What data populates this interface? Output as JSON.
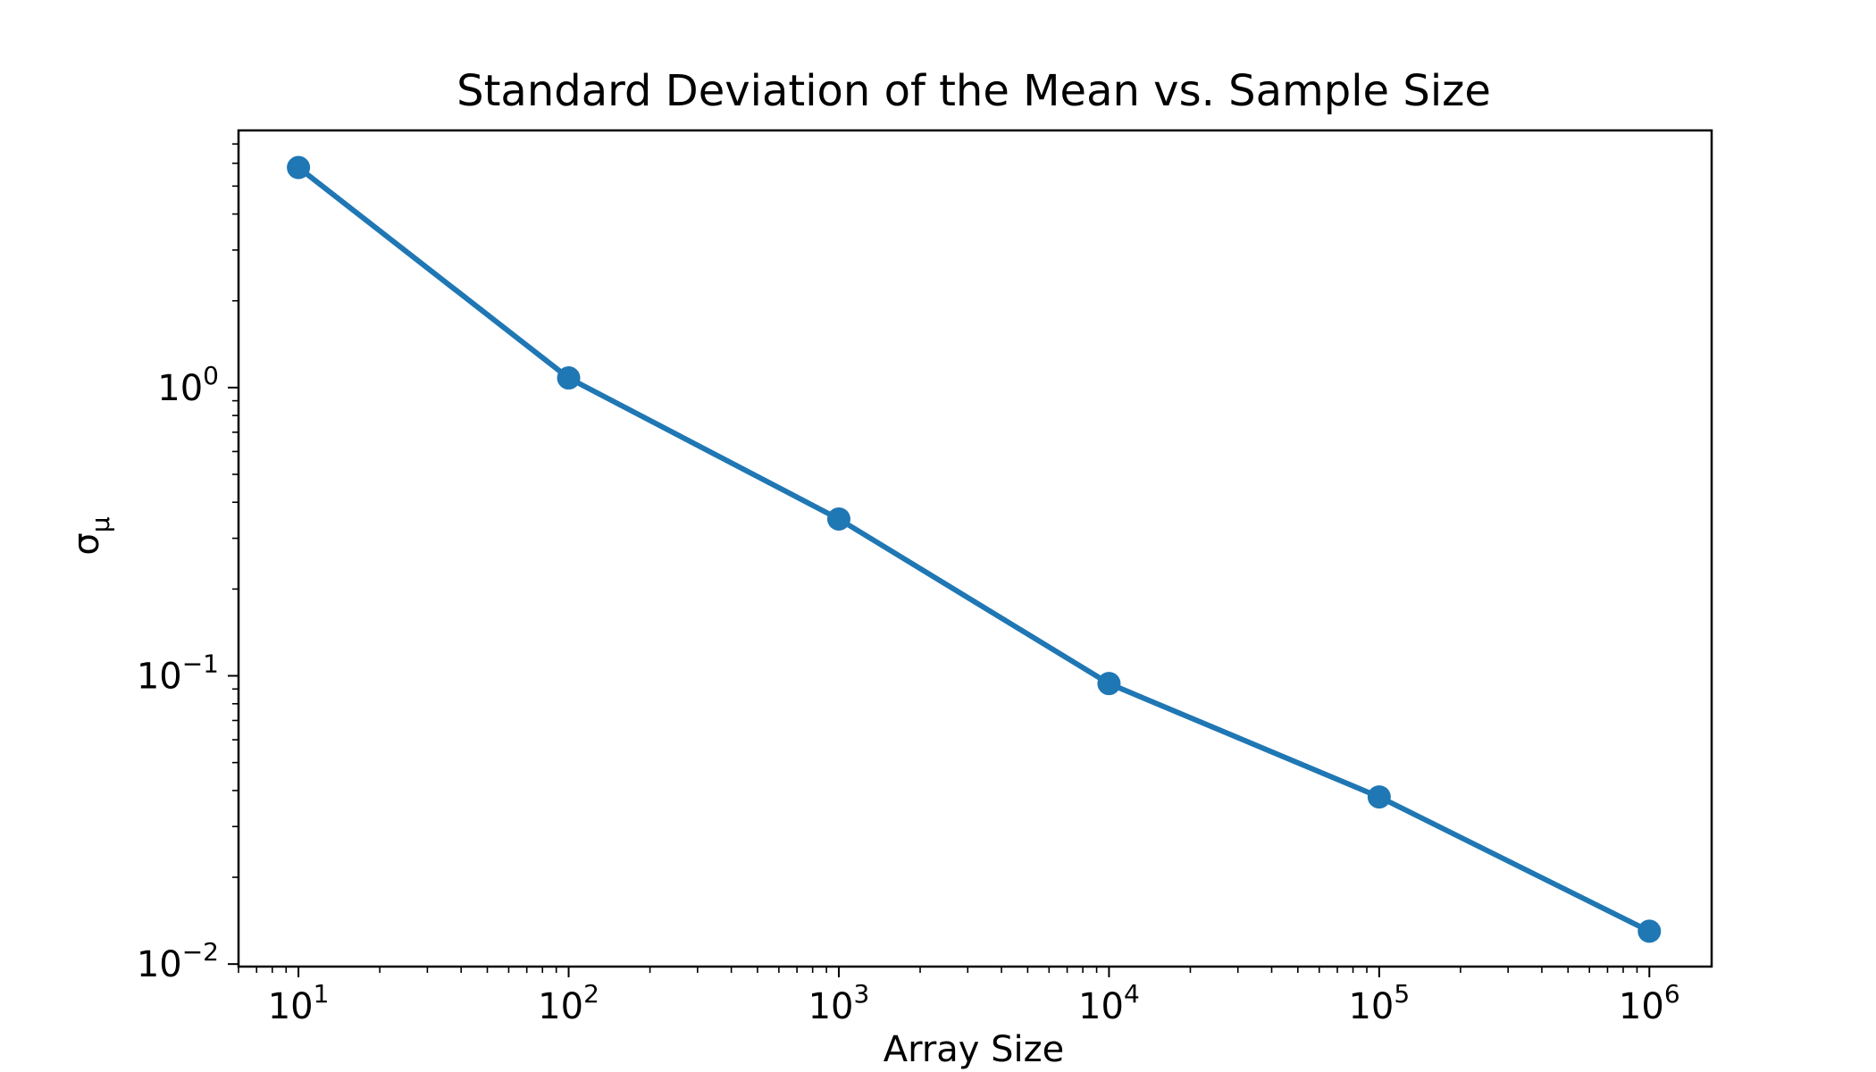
{
  "chart_data": {
    "type": "line",
    "title": "Standard Deviation of the Mean vs. Sample Size",
    "xlabel": "Array Size",
    "ylabel": "σ",
    "ylabel_subscript": "μ",
    "xscale": "log",
    "yscale": "log",
    "xlim": [
      6.0,
      1700000
    ],
    "ylim": [
      0.0098,
      7.8
    ],
    "grid": false,
    "legend": "none",
    "series": [
      {
        "x": [
          10,
          100,
          1000,
          10000,
          100000,
          1000000
        ],
        "y": [
          5.8,
          1.08,
          0.35,
          0.094,
          0.038,
          0.013
        ]
      }
    ],
    "x_ticks": [
      {
        "value": 10,
        "base": "10",
        "exp": "1"
      },
      {
        "value": 100,
        "base": "10",
        "exp": "2"
      },
      {
        "value": 1000,
        "base": "10",
        "exp": "3"
      },
      {
        "value": 10000,
        "base": "10",
        "exp": "4"
      },
      {
        "value": 100000,
        "base": "10",
        "exp": "5"
      },
      {
        "value": 1000000,
        "base": "10",
        "exp": "6"
      }
    ],
    "y_ticks": [
      {
        "value": 1,
        "base": "10",
        "exp": "0"
      },
      {
        "value": 0.1,
        "base": "10",
        "exp": "−1"
      },
      {
        "value": 0.01,
        "base": "10",
        "exp": "−2"
      }
    ],
    "colors": {
      "series": "#1f77b4",
      "axes": "#000000"
    }
  }
}
